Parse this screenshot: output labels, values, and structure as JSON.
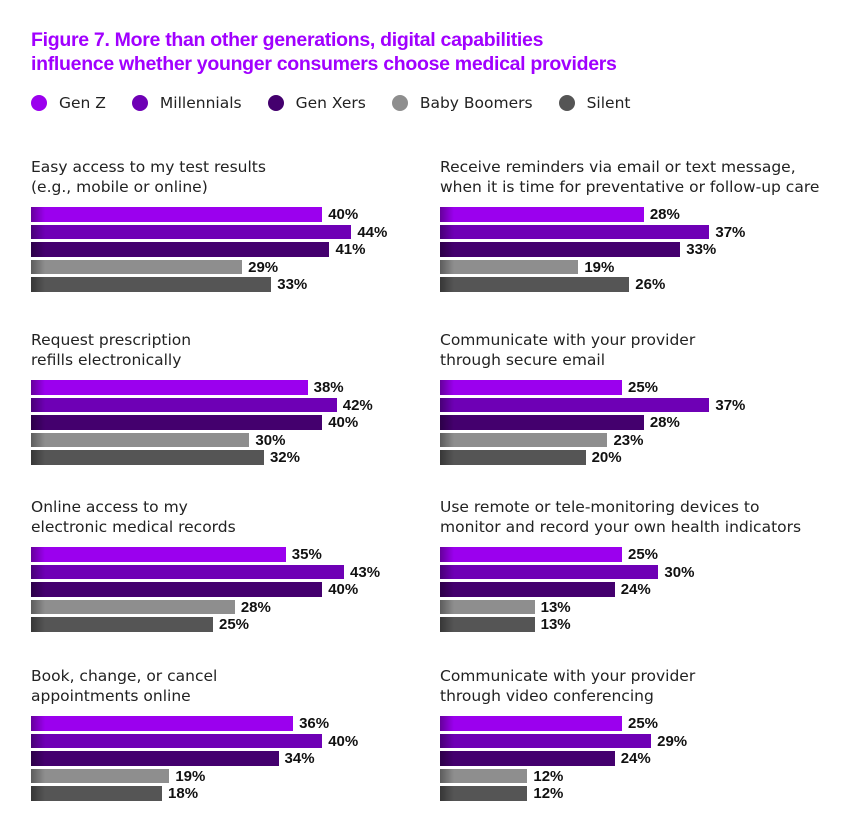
{
  "chart_data": {
    "type": "bar",
    "orientation": "horizontal",
    "title": "Figure 7. More than other generations, digital capabilities influence whether younger consumers choose medical providers",
    "legend_placement": "top",
    "series_names": [
      "Gen Z",
      "Millennials",
      "Gen Xers",
      "Baby Boomers",
      "Silent"
    ],
    "colors": [
      "#9b00ee",
      "#6e00b5",
      "#44006e",
      "#8e8e8e",
      "#555555"
    ],
    "unit": "%",
    "xlim": [
      0,
      100
    ],
    "grid": false,
    "panels": [
      {
        "title": "Easy access to my test results (e.g., mobile or online)",
        "values": [
          40,
          44,
          41,
          29,
          33
        ]
      },
      {
        "title": "Receive reminders via email or text message, when it is time for preventative or follow-up care",
        "values": [
          28,
          37,
          33,
          19,
          26
        ]
      },
      {
        "title": "Request prescription refills electronically",
        "values": [
          38,
          42,
          40,
          30,
          32
        ]
      },
      {
        "title": "Communicate with your provider through secure email",
        "values": [
          25,
          37,
          28,
          23,
          20
        ]
      },
      {
        "title": "Online access to my electronic medical records",
        "values": [
          35,
          43,
          40,
          28,
          25
        ]
      },
      {
        "title": "Use remote or tele-monitoring devices to monitor and record your own health indicators",
        "values": [
          25,
          30,
          24,
          13,
          13
        ]
      },
      {
        "title": "Book, change, or cancel appointments online",
        "values": [
          36,
          40,
          34,
          19,
          18
        ]
      },
      {
        "title": "Communicate with your provider through video conferencing",
        "values": [
          25,
          29,
          24,
          12,
          12
        ]
      }
    ]
  },
  "title_lines": [
    "Figure 7. More than other generations, digital capabilities",
    "influence whether younger consumers choose medical providers"
  ],
  "panel_title_lines": [
    [
      "Easy access to my test results",
      "(e.g., mobile or online)"
    ],
    [
      "Receive reminders via email or text message,",
      "when it is time for preventative or follow-up care"
    ],
    [
      "Request prescription",
      "refills electronically"
    ],
    [
      "Communicate with your provider",
      "through secure email"
    ],
    [
      "Online access to my",
      "electronic medical records"
    ],
    [
      "Use remote or tele-monitoring devices to",
      "monitor and record your own health indicators"
    ],
    [
      "Book, change, or cancel",
      "appointments online"
    ],
    [
      "Communicate with your provider",
      "through video conferencing"
    ]
  ]
}
